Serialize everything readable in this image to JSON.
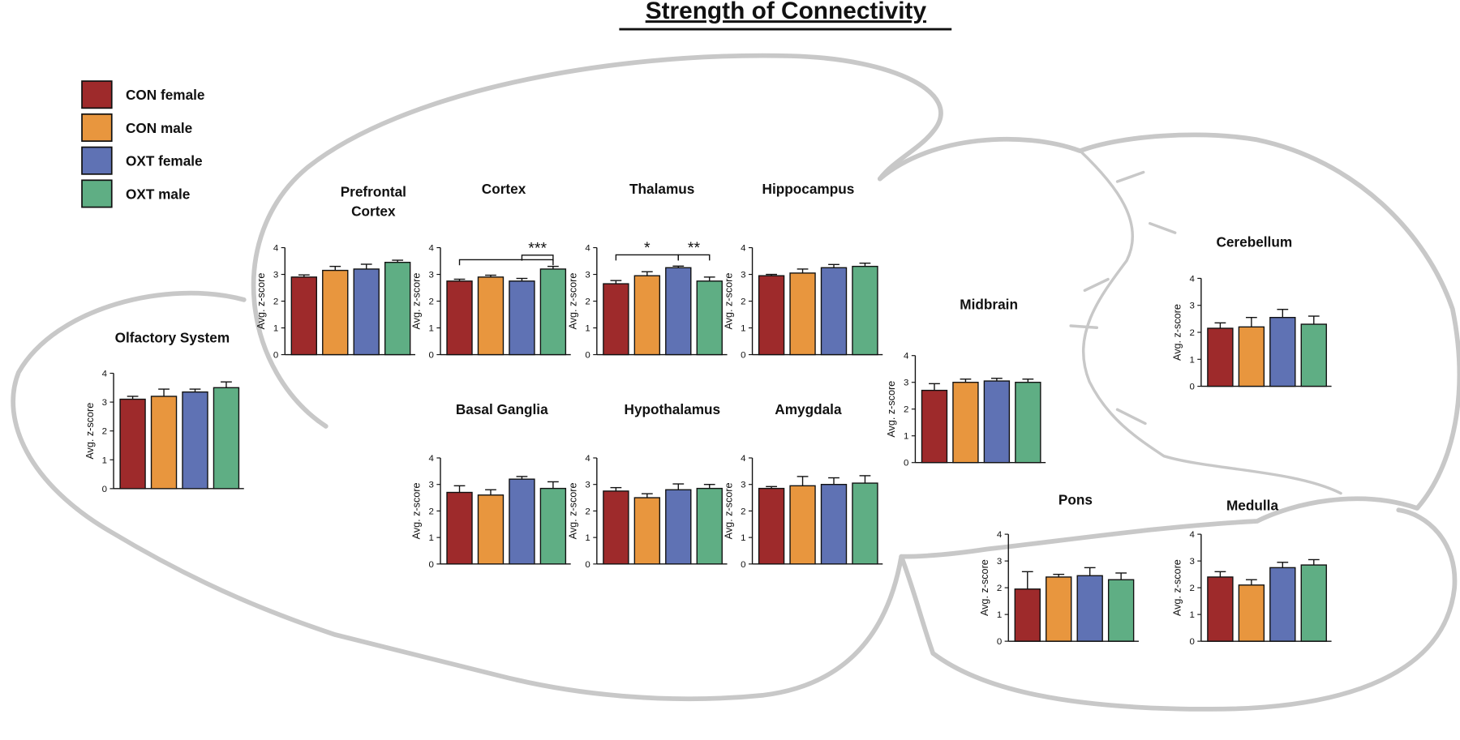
{
  "title": "Strength of Connectivity",
  "legend": [
    {
      "name": "CON female",
      "color": "#9e2a2b"
    },
    {
      "name": "CON male",
      "color": "#e8963e"
    },
    {
      "name": "OXT female",
      "color": "#5f72b4"
    },
    {
      "name": "OXT male",
      "color": "#5fae84"
    }
  ],
  "chart_data": [
    {
      "type": "bar",
      "title": "Olfactory System",
      "ylabel": "Avg. z-score",
      "values": [
        3.1,
        3.2,
        3.35,
        3.5
      ],
      "errors": [
        0.1,
        0.25,
        0.1,
        0.2
      ],
      "ylim": [
        0,
        4
      ],
      "yticks": [
        0,
        1,
        2,
        3,
        4
      ]
    },
    {
      "type": "bar",
      "title": "Prefrontal Cortex",
      "ylabel": "Avg. z-score",
      "values": [
        2.9,
        3.15,
        3.2,
        3.45
      ],
      "errors": [
        0.08,
        0.15,
        0.18,
        0.08
      ],
      "ylim": [
        0,
        4
      ],
      "yticks": [
        0,
        1,
        2,
        3,
        4
      ]
    },
    {
      "type": "bar",
      "title": "Cortex",
      "ylabel": "Avg. z-score",
      "values": [
        2.75,
        2.9,
        2.75,
        3.2
      ],
      "errors": [
        0.07,
        0.07,
        0.1,
        0.1
      ],
      "ylim": [
        0,
        4
      ],
      "yticks": [
        0,
        1,
        2,
        3,
        4
      ],
      "annotations": [
        {
          "bars": [
            0,
            3
          ]
        },
        {
          "text": "***",
          "bars": [
            2,
            3
          ]
        }
      ]
    },
    {
      "type": "bar",
      "title": "Thalamus",
      "ylabel": "Avg. z-score",
      "values": [
        2.65,
        2.95,
        3.25,
        2.75
      ],
      "errors": [
        0.12,
        0.15,
        0.06,
        0.15
      ],
      "ylim": [
        0,
        4
      ],
      "yticks": [
        0,
        1,
        2,
        3,
        4
      ],
      "annotations": [
        {
          "text": "*",
          "bars": [
            0,
            2
          ]
        },
        {
          "text": "**",
          "bars": [
            2,
            3
          ]
        }
      ]
    },
    {
      "type": "bar",
      "title": "Hippocampus",
      "ylabel": "Avg. z-score",
      "values": [
        2.95,
        3.05,
        3.25,
        3.3
      ],
      "errors": [
        0.05,
        0.15,
        0.12,
        0.12
      ],
      "ylim": [
        0,
        4
      ],
      "yticks": [
        0,
        1,
        2,
        3,
        4
      ]
    },
    {
      "type": "bar",
      "title": "Basal Ganglia",
      "ylabel": "Avg. z-score",
      "values": [
        2.7,
        2.6,
        3.2,
        2.85
      ],
      "errors": [
        0.25,
        0.2,
        0.1,
        0.25
      ],
      "ylim": [
        0,
        4
      ],
      "yticks": [
        0,
        1,
        2,
        3,
        4
      ]
    },
    {
      "type": "bar",
      "title": "Hypothalamus",
      "ylabel": "Avg. z-score",
      "values": [
        2.75,
        2.5,
        2.8,
        2.85
      ],
      "errors": [
        0.13,
        0.15,
        0.22,
        0.15
      ],
      "ylim": [
        0,
        4
      ],
      "yticks": [
        0,
        1,
        2,
        3,
        4
      ]
    },
    {
      "type": "bar",
      "title": "Amygdala",
      "ylabel": "Avg. z-score",
      "values": [
        2.85,
        2.95,
        3.0,
        3.05
      ],
      "errors": [
        0.07,
        0.35,
        0.25,
        0.28
      ],
      "ylim": [
        0,
        4
      ],
      "yticks": [
        0,
        1,
        2,
        3,
        4
      ]
    },
    {
      "type": "bar",
      "title": "Midbrain",
      "ylabel": "Avg. z-score",
      "values": [
        2.7,
        3.0,
        3.05,
        3.0
      ],
      "errors": [
        0.25,
        0.12,
        0.1,
        0.12
      ],
      "ylim": [
        0,
        4
      ],
      "yticks": [
        0,
        1,
        2,
        3,
        4
      ]
    },
    {
      "type": "bar",
      "title": "Cerebellum",
      "ylabel": "Avg. z-score",
      "values": [
        2.15,
        2.2,
        2.55,
        2.3
      ],
      "errors": [
        0.2,
        0.35,
        0.3,
        0.3
      ],
      "ylim": [
        0,
        4
      ],
      "yticks": [
        0,
        1,
        2,
        3,
        4
      ]
    },
    {
      "type": "bar",
      "title": "Pons",
      "ylabel": "Avg. z-score",
      "values": [
        1.95,
        2.4,
        2.45,
        2.3
      ],
      "errors": [
        0.65,
        0.1,
        0.3,
        0.25
      ],
      "ylim": [
        0,
        4
      ],
      "yticks": [
        0,
        1,
        2,
        3,
        4
      ]
    },
    {
      "type": "bar",
      "title": "Medulla",
      "ylabel": "Avg. z-score",
      "values": [
        2.4,
        2.1,
        2.75,
        2.85
      ],
      "errors": [
        0.2,
        0.2,
        0.2,
        0.2
      ],
      "ylim": [
        0,
        4
      ],
      "yticks": [
        0,
        1,
        2,
        3,
        4
      ]
    }
  ]
}
